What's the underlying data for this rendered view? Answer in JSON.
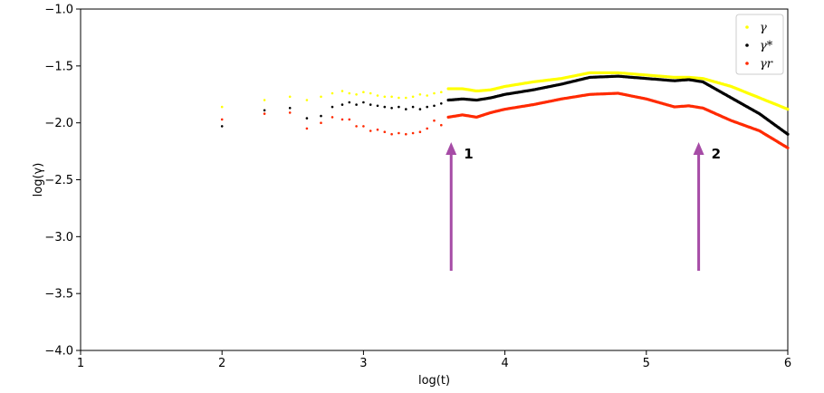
{
  "chart_data": {
    "type": "scatter",
    "xlabel": "log(t)",
    "ylabel": "log(γ)",
    "xlim": [
      1,
      6
    ],
    "ylim": [
      -4.0,
      -1.0
    ],
    "xticks": [
      1,
      2,
      3,
      4,
      5,
      6
    ],
    "yticks": [
      -1.0,
      -1.5,
      -2.0,
      -2.5,
      -3.0,
      -3.5,
      -4.0
    ],
    "xtick_labels": [
      "1",
      "2",
      "3",
      "4",
      "5",
      "6"
    ],
    "ytick_labels": [
      "−1.0",
      "−1.5",
      "−2.0",
      "−2.5",
      "−3.0",
      "−3.5",
      "−4.0"
    ],
    "grid": false,
    "legend_position": "top-right",
    "series": [
      {
        "name": "γ",
        "color": "#ffff00",
        "x": [
          2.0,
          2.3,
          2.48,
          2.6,
          2.7,
          2.78,
          2.85,
          2.9,
          2.95,
          3.0,
          3.05,
          3.1,
          3.15,
          3.2,
          3.25,
          3.3,
          3.35,
          3.4,
          3.45,
          3.5,
          3.55,
          3.6,
          3.7,
          3.8,
          3.9,
          4.0,
          4.2,
          4.4,
          4.6,
          4.8,
          5.0,
          5.2,
          5.3,
          5.4,
          5.6,
          5.8,
          6.0
        ],
        "y": [
          -1.86,
          -1.8,
          -1.77,
          -1.8,
          -1.77,
          -1.74,
          -1.72,
          -1.74,
          -1.75,
          -1.73,
          -1.74,
          -1.76,
          -1.77,
          -1.77,
          -1.78,
          -1.78,
          -1.77,
          -1.75,
          -1.76,
          -1.74,
          -1.73,
          -1.7,
          -1.7,
          -1.72,
          -1.71,
          -1.68,
          -1.64,
          -1.61,
          -1.56,
          -1.56,
          -1.58,
          -1.6,
          -1.6,
          -1.61,
          -1.68,
          -1.78,
          -1.88
        ]
      },
      {
        "name": "γ*",
        "color": "#000000",
        "x": [
          2.0,
          2.3,
          2.48,
          2.6,
          2.7,
          2.78,
          2.85,
          2.9,
          2.95,
          3.0,
          3.05,
          3.1,
          3.15,
          3.2,
          3.25,
          3.3,
          3.35,
          3.4,
          3.45,
          3.5,
          3.55,
          3.6,
          3.7,
          3.8,
          3.9,
          4.0,
          4.2,
          4.4,
          4.6,
          4.8,
          5.0,
          5.2,
          5.3,
          5.4,
          5.6,
          5.8,
          6.0
        ],
        "y": [
          -2.03,
          -1.89,
          -1.87,
          -1.96,
          -1.94,
          -1.86,
          -1.84,
          -1.82,
          -1.84,
          -1.82,
          -1.84,
          -1.85,
          -1.86,
          -1.87,
          -1.86,
          -1.88,
          -1.86,
          -1.88,
          -1.86,
          -1.85,
          -1.83,
          -1.8,
          -1.79,
          -1.8,
          -1.78,
          -1.75,
          -1.71,
          -1.66,
          -1.6,
          -1.59,
          -1.61,
          -1.63,
          -1.62,
          -1.64,
          -1.78,
          -1.92,
          -2.1
        ]
      },
      {
        "name": "γr",
        "color": "#ff2a00",
        "x": [
          2.0,
          2.3,
          2.48,
          2.6,
          2.7,
          2.78,
          2.85,
          2.9,
          2.95,
          3.0,
          3.05,
          3.1,
          3.15,
          3.2,
          3.25,
          3.3,
          3.35,
          3.4,
          3.45,
          3.5,
          3.55,
          3.6,
          3.7,
          3.8,
          3.9,
          4.0,
          4.2,
          4.4,
          4.6,
          4.8,
          5.0,
          5.2,
          5.3,
          5.4,
          5.6,
          5.8,
          6.0
        ],
        "y": [
          -1.97,
          -1.92,
          -1.91,
          -2.05,
          -2.0,
          -1.95,
          -1.97,
          -1.97,
          -2.03,
          -2.03,
          -2.07,
          -2.06,
          -2.08,
          -2.1,
          -2.09,
          -2.1,
          -2.09,
          -2.08,
          -2.05,
          -1.98,
          -2.02,
          -1.95,
          -1.93,
          -1.95,
          -1.91,
          -1.88,
          -1.84,
          -1.79,
          -1.75,
          -1.74,
          -1.79,
          -1.86,
          -1.85,
          -1.87,
          -1.98,
          -2.07,
          -2.22
        ]
      }
    ],
    "annotations": [
      {
        "label": "1",
        "x": 3.62,
        "y_tail": -3.3,
        "y_head": -2.17,
        "color": "#a64ca6"
      },
      {
        "label": "2",
        "x": 5.37,
        "y_tail": -3.3,
        "y_head": -2.17,
        "color": "#a64ca6"
      }
    ]
  }
}
